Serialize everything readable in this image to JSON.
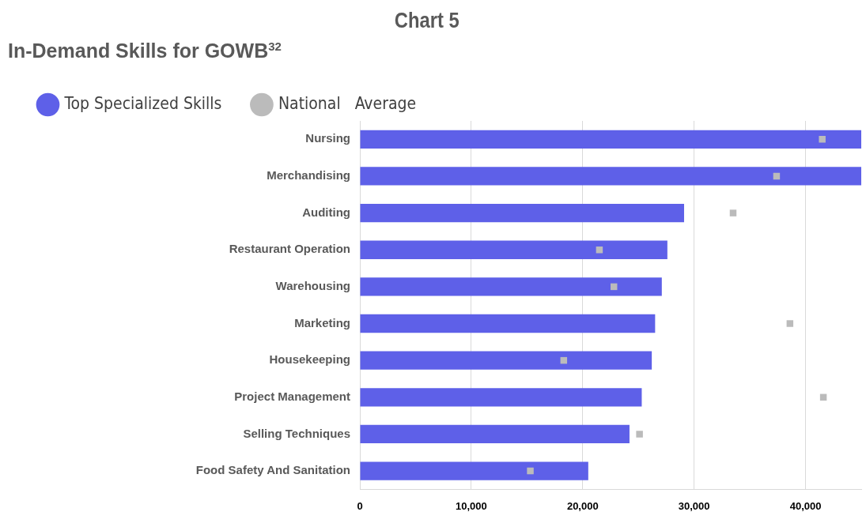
{
  "chart_data": {
    "type": "bar",
    "orientation": "horizontal",
    "title": "Chart 5",
    "subtitle": "In-Demand Skills for GOWB$^{32}$",
    "categories": [
      "Nursing",
      "Merchandising",
      "Auditing",
      "Restaurant Operation",
      "Warehousing",
      "Marketing",
      "Housekeeping",
      "Project Management",
      "Selling Techniques",
      "Food Safety And Sanitation"
    ],
    "series": [
      {
        "name": "Top Specialized Skills",
        "color": "#5e60e8",
        "values": [
          45000,
          45000,
          29100,
          27600,
          27100,
          26500,
          26200,
          25300,
          24200,
          20500
        ]
      },
      {
        "name": "National   Average",
        "type": "scatter",
        "color": "#bbbbbb",
        "values": [
          41500,
          37400,
          33500,
          21500,
          22800,
          38600,
          18300,
          41600,
          25100,
          15300
        ]
      }
    ],
    "xlim": [
      0,
      45000
    ],
    "xticks": [
      0,
      {
        "value": 10000,
        "label": "10,000"
      },
      {
        "value": 20000,
        "label": "20,000"
      },
      {
        "value": 30000,
        "label": "30,000"
      },
      {
        "value": 40000,
        "label": "40,000"
      }
    ],
    "grid": "x",
    "legend": "top left"
  }
}
